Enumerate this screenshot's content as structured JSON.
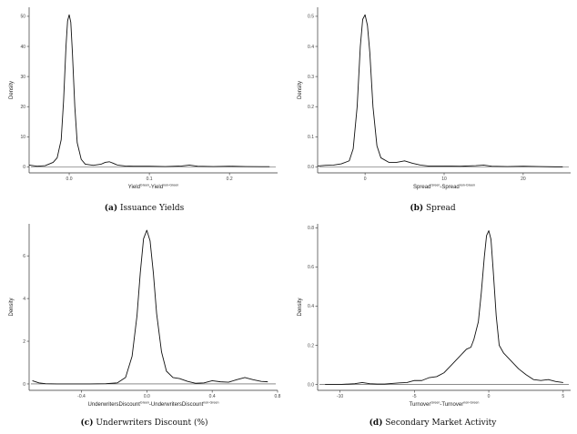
{
  "panels": [
    {
      "caption_letter": "(a)",
      "caption_text": "Issuance Yields"
    },
    {
      "caption_letter": "(b)",
      "caption_text": "Spread"
    },
    {
      "caption_letter": "(c)",
      "caption_text": "Underwriters Discount (%)"
    },
    {
      "caption_letter": "(d)",
      "caption_text": "Secondary Market Activity"
    }
  ],
  "chart_data": [
    {
      "type": "line",
      "title": "",
      "ylabel": "Density",
      "xlabel": {
        "base1": "Yield",
        "sup1": "Green",
        "sep": "-",
        "base2": "Yield",
        "sup2": "non-Green"
      },
      "xlim": [
        -0.05,
        0.26
      ],
      "ylim": [
        -2,
        53
      ],
      "xticks": [
        0.0,
        0.1,
        0.2
      ],
      "xtick_labels": [
        "0.0",
        "0.1",
        "0.2"
      ],
      "yticks": [
        0,
        10,
        20,
        30,
        40,
        50
      ],
      "ytick_labels": [
        "0",
        "10",
        "20",
        "30",
        "40",
        "50"
      ],
      "grid": false,
      "series": [
        {
          "x": [
            -0.05,
            -0.04,
            -0.03,
            -0.02,
            -0.015,
            -0.01,
            -0.007,
            -0.004,
            -0.002,
            0,
            0.002,
            0.004,
            0.007,
            0.01,
            0.015,
            0.02,
            0.03,
            0.04,
            0.045,
            0.05,
            0.055,
            0.06,
            0.07,
            0.08,
            0.1,
            0.12,
            0.14,
            0.15,
            0.16,
            0.18,
            0.2,
            0.22,
            0.24,
            0.25
          ],
          "y": [
            0.6,
            0.2,
            0.4,
            1.5,
            3,
            9,
            22,
            40,
            48.5,
            50.5,
            48,
            38,
            20,
            8,
            2.5,
            0.9,
            0.5,
            0.9,
            1.5,
            1.7,
            1.2,
            0.6,
            0.3,
            0.2,
            0.2,
            0.1,
            0.3,
            0.6,
            0.2,
            0.1,
            0.2,
            0.1,
            0.05,
            0.05
          ]
        }
      ]
    },
    {
      "type": "line",
      "title": "",
      "ylabel": "Density",
      "xlabel": {
        "base1": "Spread",
        "sup1": "Green",
        "sep": "-",
        "base2": "Spread",
        "sup2": "non-Green"
      },
      "xlim": [
        -6,
        26
      ],
      "ylim": [
        -0.02,
        0.53
      ],
      "xticks": [
        0,
        10,
        20
      ],
      "xtick_labels": [
        "0",
        "10",
        "20"
      ],
      "yticks": [
        0.0,
        0.1,
        0.2,
        0.3,
        0.4,
        0.5
      ],
      "ytick_labels": [
        "0.0",
        "0.1",
        "0.2",
        "0.3",
        "0.4",
        "0.5"
      ],
      "grid": false,
      "series": [
        {
          "x": [
            -6,
            -5,
            -4,
            -3,
            -2,
            -1.5,
            -1,
            -0.6,
            -0.3,
            0,
            0.3,
            0.6,
            1,
            1.5,
            2,
            3,
            4,
            5,
            6,
            7,
            8,
            10,
            12,
            14,
            15,
            16,
            18,
            20,
            22,
            24,
            25
          ],
          "y": [
            0.003,
            0.005,
            0.006,
            0.01,
            0.02,
            0.06,
            0.2,
            0.4,
            0.49,
            0.505,
            0.47,
            0.38,
            0.2,
            0.07,
            0.03,
            0.015,
            0.015,
            0.02,
            0.012,
            0.006,
            0.003,
            0.003,
            0.002,
            0.004,
            0.006,
            0.002,
            0.001,
            0.002,
            0.001,
            0.0,
            0.0
          ]
        }
      ]
    },
    {
      "type": "line",
      "title": "",
      "ylabel": "Density",
      "xlabel": {
        "base1": "UnderwritersDiscount",
        "sup1": "Green",
        "sep": "-",
        "base2": "UnderwritersDiscount",
        "sup2": "non-Green"
      },
      "xlim": [
        -0.72,
        0.8
      ],
      "ylim": [
        -0.3,
        7.5
      ],
      "xticks": [
        -0.4,
        0.0,
        0.4,
        0.8
      ],
      "xtick_labels": [
        "-0.4",
        "0.0",
        "0.4",
        "0.8"
      ],
      "yticks": [
        0,
        2,
        4,
        6
      ],
      "ytick_labels": [
        "0",
        "2",
        "4",
        "6"
      ],
      "grid": false,
      "series": [
        {
          "x": [
            -0.7,
            -0.66,
            -0.62,
            -0.55,
            -0.45,
            -0.35,
            -0.25,
            -0.18,
            -0.13,
            -0.09,
            -0.06,
            -0.04,
            -0.02,
            0,
            0.02,
            0.04,
            0.06,
            0.09,
            0.12,
            0.16,
            0.2,
            0.25,
            0.3,
            0.35,
            0.4,
            0.45,
            0.5,
            0.55,
            0.6,
            0.65,
            0.7,
            0.74
          ],
          "y": [
            0.15,
            0.05,
            0.01,
            0.0,
            0.0,
            0.0,
            0.01,
            0.05,
            0.3,
            1.3,
            3.2,
            5.2,
            6.8,
            7.2,
            6.7,
            5.2,
            3.3,
            1.5,
            0.6,
            0.3,
            0.25,
            0.12,
            0.03,
            0.05,
            0.15,
            0.1,
            0.08,
            0.2,
            0.3,
            0.2,
            0.12,
            0.1
          ]
        }
      ]
    },
    {
      "type": "line",
      "title": "",
      "ylabel": "Density",
      "xlabel": {
        "base1": "Turnover",
        "sup1": "Green",
        "sep": "-",
        "base2": "Turnover",
        "sup2": "non-Green"
      },
      "xlim": [
        -11.5,
        5.5
      ],
      "ylim": [
        -0.03,
        0.82
      ],
      "xticks": [
        -10,
        -5,
        0,
        5
      ],
      "xtick_labels": [
        "-10",
        "-5",
        "0",
        "5"
      ],
      "yticks": [
        0.0,
        0.2,
        0.4,
        0.6,
        0.8
      ],
      "ytick_labels": [
        "0.0",
        "0.2",
        "0.4",
        "0.6",
        "0.8"
      ],
      "grid": false,
      "series": [
        {
          "x": [
            -11,
            -10,
            -9,
            -8.5,
            -8,
            -7.5,
            -7,
            -6,
            -5.5,
            -5,
            -4.5,
            -4,
            -3.5,
            -3,
            -2.5,
            -2,
            -1.5,
            -1.2,
            -1,
            -0.7,
            -0.5,
            -0.3,
            -0.15,
            0,
            0.15,
            0.3,
            0.5,
            0.7,
            1,
            1.5,
            2,
            2.5,
            3,
            3.5,
            4,
            4.5,
            5
          ],
          "y": [
            0.0,
            0.0,
            0.004,
            0.01,
            0.004,
            0.002,
            0.002,
            0.008,
            0.01,
            0.02,
            0.02,
            0.035,
            0.04,
            0.06,
            0.1,
            0.14,
            0.18,
            0.19,
            0.23,
            0.32,
            0.47,
            0.65,
            0.76,
            0.785,
            0.74,
            0.58,
            0.35,
            0.2,
            0.16,
            0.12,
            0.08,
            0.05,
            0.025,
            0.02,
            0.025,
            0.015,
            0.01
          ]
        }
      ]
    }
  ]
}
